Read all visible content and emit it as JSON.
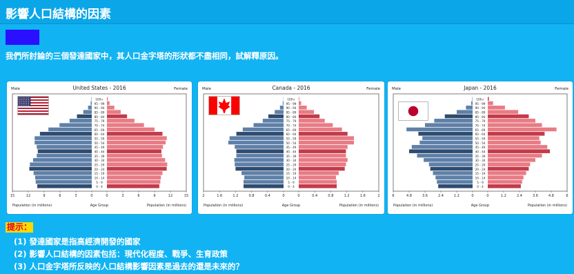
{
  "page": {
    "title": "影響人口結構的因素",
    "question": "我們所討論的三個發達國家中，其人口金字塔的形狀都不盡相同，試解釋原因。",
    "hint_label": "提示：",
    "hints": [
      "(1) 發達國家是指高經濟開發的國家",
      "(2) 影響人口結構的因素包括：現代化程度、戰爭、生育政策",
      "(3) 人口金字塔所反映的人口結構影響因素是過去的還是未來的？"
    ]
  },
  "chart_data": [
    {
      "type": "bar",
      "title": "United States - 2016",
      "male_label": "Male",
      "female_label": "Female",
      "age_groups": [
        "0 - 4",
        "5 - 9",
        "10 - 14",
        "15 - 19",
        "20 - 24",
        "25 - 29",
        "30 - 34",
        "35 - 39",
        "40 - 44",
        "45 - 49",
        "50 - 54",
        "55 - 59",
        "60 - 64",
        "65 - 69",
        "70 - 74",
        "75 - 79",
        "80 - 84",
        "85 - 89",
        "90 - 94",
        "95 - 99",
        "100+"
      ],
      "series": [
        {
          "name": "Male",
          "values": [
            10.3,
            10.6,
            10.7,
            11.0,
            11.8,
            11.7,
            11.1,
            10.4,
            10.2,
            10.4,
            10.8,
            10.8,
            9.8,
            8.2,
            6.1,
            4.2,
            2.8,
            1.6,
            0.7,
            0.2,
            0.05
          ]
        },
        {
          "name": "Female",
          "values": [
            9.9,
            10.1,
            10.2,
            10.5,
            11.3,
            11.4,
            11.0,
            10.4,
            10.3,
            10.6,
            11.1,
            11.3,
            10.5,
            9.0,
            7.0,
            5.2,
            3.8,
            2.6,
            1.4,
            0.5,
            0.1
          ]
        }
      ],
      "x_ticks": [
        "15",
        "12",
        "9",
        "6",
        "3",
        "0",
        "0",
        "3",
        "6",
        "9",
        "12",
        "15"
      ],
      "xlim": [
        0,
        15
      ],
      "xlabel_left": "Population (in millions)",
      "xlabel_center": "Age Group",
      "xlabel_right": "Population (in millions)",
      "flag": "us-flag-icon"
    },
    {
      "type": "bar",
      "title": "Canada - 2016",
      "male_label": "Male",
      "female_label": "Female",
      "age_groups": [
        "0 - 4",
        "5 - 9",
        "10 - 14",
        "15 - 19",
        "20 - 24",
        "25 - 29",
        "30 - 34",
        "35 - 39",
        "40 - 44",
        "45 - 49",
        "50 - 54",
        "55 - 59",
        "60 - 64",
        "65 - 69",
        "70 - 74",
        "75 - 79",
        "80 - 84",
        "85 - 89",
        "90 - 94",
        "95 - 99",
        "100+"
      ],
      "series": [
        {
          "name": "Male",
          "values": [
            1.0,
            1.0,
            0.98,
            1.05,
            1.2,
            1.22,
            1.23,
            1.18,
            1.18,
            1.22,
            1.38,
            1.35,
            1.18,
            1.02,
            0.75,
            0.52,
            0.38,
            0.22,
            0.09,
            0.02,
            0.003
          ]
        },
        {
          "name": "Female",
          "values": [
            0.95,
            0.95,
            0.93,
            1.0,
            1.15,
            1.18,
            1.22,
            1.18,
            1.18,
            1.22,
            1.38,
            1.38,
            1.22,
            1.08,
            0.85,
            0.65,
            0.52,
            0.38,
            0.2,
            0.06,
            0.01
          ]
        }
      ],
      "x_ticks": [
        "2",
        "1.6",
        "1.2",
        "0.8",
        "0.4",
        "0",
        "0",
        "0.4",
        "0.8",
        "1.2",
        "1.6",
        "2"
      ],
      "xlim": [
        0,
        2
      ],
      "xlabel_left": "Population (in millions)",
      "xlabel_center": "Age Group",
      "xlabel_right": "Population (in millions)",
      "flag": "canada-flag-icon"
    },
    {
      "type": "bar",
      "title": "Japan - 2016",
      "male_label": "Male",
      "female_label": "Female",
      "age_groups": [
        "0 - 4",
        "5 - 9",
        "10 - 14",
        "15 - 19",
        "20 - 24",
        "25 - 29",
        "30 - 34",
        "35 - 39",
        "40 - 44",
        "45 - 49",
        "50 - 54",
        "55 - 59",
        "60 - 64",
        "65 - 69",
        "70 - 74",
        "75 - 79",
        "80 - 84",
        "85 - 89",
        "90 - 94",
        "95 - 99",
        "100+"
      ],
      "series": [
        {
          "name": "Male",
          "values": [
            2.6,
            2.7,
            2.8,
            3.0,
            3.2,
            3.3,
            3.7,
            4.2,
            4.8,
            4.6,
            4.0,
            3.8,
            4.1,
            5.0,
            3.6,
            2.9,
            2.1,
            1.2,
            0.5,
            0.1,
            0.02
          ]
        },
        {
          "name": "Female",
          "values": [
            2.5,
            2.6,
            2.7,
            2.9,
            3.1,
            3.2,
            3.6,
            4.1,
            4.7,
            4.5,
            4.0,
            3.9,
            4.3,
            5.2,
            4.1,
            3.6,
            3.1,
            2.3,
            1.3,
            0.4,
            0.08
          ]
        }
      ],
      "x_ticks": [
        "6",
        "4.8",
        "3.6",
        "2.4",
        "1.2",
        "0",
        "0",
        "1.2",
        "2.4",
        "3.6",
        "4.8",
        "6"
      ],
      "xlim": [
        0,
        6
      ],
      "xlabel_left": "Population (in millions)",
      "xlabel_center": "Age Group",
      "xlabel_right": "Population (in millions)",
      "flag": "japan-flag-icon"
    }
  ],
  "colors": {
    "male_bar": "#5e80a8",
    "male_bar_dark": "#2f4b6e",
    "female_bar": "#e87b84",
    "female_bar_dark": "#c23b4a",
    "background": "#12b3f2",
    "title_bar": "#0aa6e8",
    "hint_highlight": "#ffd800",
    "hint_text": "#e0002b"
  }
}
